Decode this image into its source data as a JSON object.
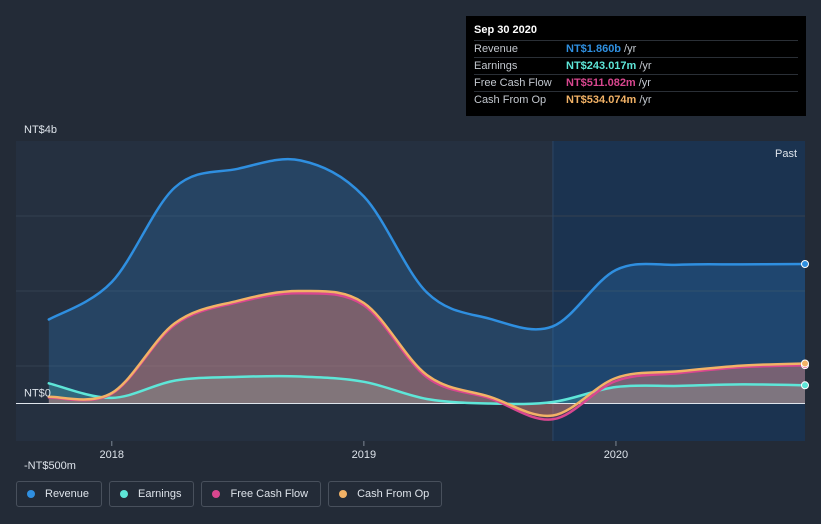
{
  "chart_data": {
    "type": "area",
    "y_axis": {
      "top_label": "NT$4b",
      "zero_label": "NT$0",
      "bottom_label": "-NT$500m",
      "ylim": [
        -500,
        3500
      ]
    },
    "x_ticks": [
      {
        "label": "2018",
        "x": 2018.0
      },
      {
        "label": "2019",
        "x": 2019.0
      },
      {
        "label": "2020",
        "x": 2020.0
      }
    ],
    "x_range": [
      2017.62,
      2020.75
    ],
    "past_start": 2019.75,
    "past_label": "Past",
    "x": [
      2017.75,
      2018.0,
      2018.25,
      2018.5,
      2018.75,
      2019.0,
      2019.25,
      2019.5,
      2019.75,
      2020.0,
      2020.25,
      2020.5,
      2020.75
    ],
    "series": [
      {
        "name": "Revenue",
        "color": "#2f8fe0",
        "values": [
          1120,
          1620,
          2880,
          3130,
          3240,
          2760,
          1480,
          1130,
          1030,
          1780,
          1850,
          1855,
          1860
        ]
      },
      {
        "name": "Earnings",
        "color": "#5ee6d8",
        "values": [
          270,
          75,
          305,
          355,
          360,
          290,
          60,
          0,
          20,
          220,
          235,
          255,
          243
        ]
      },
      {
        "name": "Free Cash Flow",
        "color": "#d9478f",
        "values": [
          80,
          130,
          1050,
          1350,
          1470,
          1310,
          350,
          70,
          -210,
          300,
          405,
          485,
          511
        ]
      },
      {
        "name": "Cash From Op",
        "color": "#f2b266",
        "values": [
          90,
          140,
          1070,
          1370,
          1500,
          1340,
          380,
          90,
          -160,
          340,
          430,
          505,
          534
        ]
      }
    ]
  },
  "tooltip": {
    "date": "Sep 30 2020",
    "rows": [
      {
        "label": "Revenue",
        "value": "NT$1.860b",
        "unit": "/yr",
        "color": "#2f8fe0"
      },
      {
        "label": "Earnings",
        "value": "NT$243.017m",
        "unit": "/yr",
        "color": "#5ee6d8"
      },
      {
        "label": "Free Cash Flow",
        "value": "NT$511.082m",
        "unit": "/yr",
        "color": "#d9478f"
      },
      {
        "label": "Cash From Op",
        "value": "NT$534.074m",
        "unit": "/yr",
        "color": "#f2b266"
      }
    ]
  },
  "legend": [
    {
      "label": "Revenue",
      "color": "#2f8fe0"
    },
    {
      "label": "Earnings",
      "color": "#5ee6d8"
    },
    {
      "label": "Free Cash Flow",
      "color": "#d9478f"
    },
    {
      "label": "Cash From Op",
      "color": "#f2b266"
    }
  ]
}
